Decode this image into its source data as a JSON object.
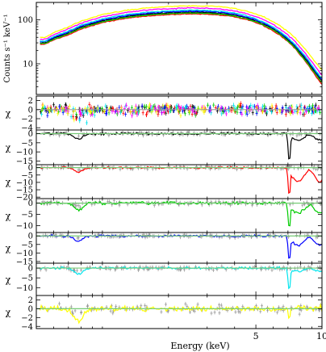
{
  "chart_data": {
    "type": "multi-panel spectral plot",
    "xlabel": "Energy (keV)",
    "xscale": "log",
    "xlim": [
      0.5,
      10
    ],
    "xticks": [
      5,
      10
    ],
    "series_colors": [
      "#000000",
      "#ff0000",
      "#00cc00",
      "#0000ff",
      "#00e5ee",
      "#ff00ff",
      "#ffff00"
    ],
    "model_color": "#999999",
    "panels": [
      {
        "id": "spectrum",
        "type": "line",
        "ylabel": "Counts s⁻¹ keV⁻¹",
        "yscale": "log",
        "ylim": [
          2,
          250
        ],
        "yticks": [
          10,
          100
        ],
        "x": [
          0.55,
          0.6,
          0.7,
          0.8,
          1.0,
          1.3,
          1.6,
          2.0,
          2.5,
          3.0,
          3.5,
          4.0,
          4.5,
          5.0,
          5.5,
          6.0,
          6.5,
          7.0,
          7.5,
          8.0,
          8.5,
          9.0,
          9.5,
          10.0
        ],
        "series": [
          {
            "color": "#000000",
            "values": [
              30,
              38,
              50,
              68,
              95,
              120,
              135,
              145,
              150,
              148,
              140,
              128,
              112,
              95,
              78,
              62,
              47,
              35,
              25,
              17,
              12,
              8,
              5.5,
              4.0
            ]
          },
          {
            "color": "#ff0000",
            "values": [
              28,
              35,
              46,
              62,
              87,
              110,
              123,
              132,
              137,
              135,
              128,
              117,
              102,
              87,
              71,
              56,
              43,
              32,
              23,
              15.5,
              10.5,
              7,
              4.8,
              3.3
            ]
          },
          {
            "color": "#00cc00",
            "values": [
              29,
              36,
              48,
              65,
              91,
              115,
              128,
              138,
              143,
              141,
              134,
              122,
              107,
              91,
              74,
              59,
              45,
              33,
              24,
              16,
              11,
              7.5,
              5.2,
              3.6
            ]
          },
          {
            "color": "#0000ff",
            "values": [
              32,
              40,
              53,
              72,
              100,
              127,
              142,
              153,
              158,
              156,
              148,
              135,
              118,
              100,
              82,
              65,
              50,
              37,
              27,
              18.5,
              13,
              8.8,
              6,
              4.3
            ]
          },
          {
            "color": "#00e5ee",
            "values": [
              33,
              42,
              56,
              76,
              106,
              134,
              150,
              161,
              167,
              165,
              156,
              143,
              125,
              106,
              87,
              69,
              53,
              39,
              28.5,
              19.5,
              13.8,
              9.3,
              6.4,
              4.6
            ]
          },
          {
            "color": "#ff00ff",
            "values": [
              36,
              46,
              62,
              84,
              118,
              150,
              168,
              180,
              187,
              184,
              175,
              160,
              140,
              119,
              98,
              78,
              60,
              45,
              33,
              23,
              16,
              11,
              7.6,
              5.4
            ]
          },
          {
            "color": "#ffff00",
            "values": [
              40,
              51,
              69,
              94,
              132,
              168,
              188,
              202,
              210,
              208,
              198,
              182,
              160,
              137,
              114,
              91,
              71,
              54,
              40,
              28,
              20,
              14,
              9.8,
              7
            ]
          }
        ]
      },
      {
        "id": "chi-all",
        "type": "scatter",
        "ylabel": "χ",
        "ylim": [
          -4.5,
          3
        ],
        "yticks": [
          2,
          0,
          -2,
          -4
        ],
        "mode": "all"
      },
      {
        "id": "chi-black",
        "type": "scatter",
        "ylabel": "χ",
        "ylim": [
          -17,
          2
        ],
        "yticks": [
          0,
          -5,
          -10,
          -15
        ],
        "color": "#000000",
        "edge_depth": -15,
        "tail_depth": -3.5
      },
      {
        "id": "chi-red",
        "type": "scatter",
        "ylabel": "χ",
        "ylim": [
          -21,
          2
        ],
        "yticks": [
          0,
          -5,
          -10,
          -15,
          -20
        ],
        "color": "#ff0000",
        "edge_depth": -19,
        "tail_depth": -9.5
      },
      {
        "id": "chi-green",
        "type": "scatter",
        "ylabel": "χ",
        "ylim": [
          -13,
          2
        ],
        "yticks": [
          0,
          -5,
          -10
        ],
        "color": "#00cc00",
        "edge_depth": -11.5,
        "tail_depth": -4.5
      },
      {
        "id": "chi-blue",
        "type": "scatter",
        "ylabel": "χ",
        "ylim": [
          -16,
          2
        ],
        "yticks": [
          0,
          -5,
          -10,
          -15
        ],
        "color": "#0000ff",
        "edge_depth": -15,
        "tail_depth": -5.5
      },
      {
        "id": "chi-cyan",
        "type": "scatter",
        "ylabel": "χ",
        "ylim": [
          -14,
          2.5
        ],
        "yticks": [
          0,
          -5,
          -10
        ],
        "color": "#00e5ee",
        "edge_depth": -11,
        "tail_depth": -1.5
      },
      {
        "id": "chi-yellow",
        "type": "scatter",
        "ylabel": "χ",
        "ylim": [
          -4.5,
          3
        ],
        "yticks": [
          2,
          0,
          -2,
          -4
        ],
        "color": "#ffff00",
        "edge_depth": -2,
        "tail_depth": 0.3
      }
    ]
  }
}
